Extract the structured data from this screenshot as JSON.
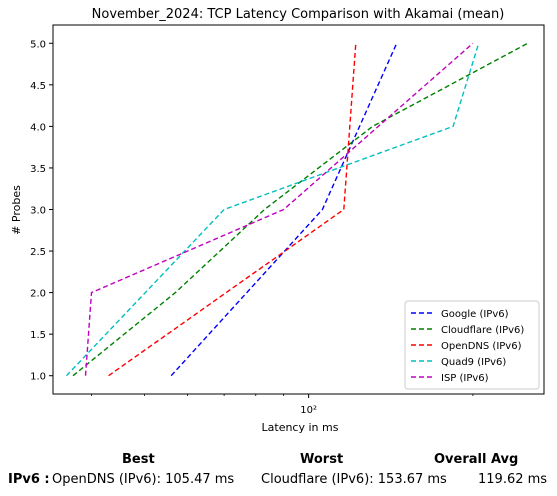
{
  "chart_data": {
    "type": "line",
    "title": "November_2024: TCP Latency Comparison with Akamai (mean)",
    "xlabel": "Latency in ms",
    "ylabel": "# Probes",
    "xscale": "log",
    "xlim": [
      34,
      270
    ],
    "ylim": [
      0.78,
      5.22
    ],
    "x_tick_labels": [
      "10²"
    ],
    "x_ticks": [
      100
    ],
    "y_ticks": [
      1.0,
      1.5,
      2.0,
      2.5,
      3.0,
      3.5,
      4.0,
      4.5,
      5.0
    ],
    "y_tick_labels": [
      "1.0",
      "1.5",
      "2.0",
      "2.5",
      "3.0",
      "3.5",
      "4.0",
      "4.5",
      "5.0"
    ],
    "grid": false,
    "legend_position": "lower-right",
    "series": [
      {
        "name": "Google (IPv6)",
        "color": "#0000ff",
        "x": [
          56,
          106,
          145
        ],
        "y": [
          1,
          3,
          5
        ]
      },
      {
        "name": "Cloudflare (IPv6)",
        "color": "#008000",
        "x": [
          37,
          57,
          83,
          131,
          252
        ],
        "y": [
          1,
          2,
          3,
          4,
          5
        ]
      },
      {
        "name": "OpenDNS (IPv6)",
        "color": "#ff0000",
        "x": [
          43,
          116,
          122
        ],
        "y": [
          1,
          3,
          5
        ]
      },
      {
        "name": "Quad9 (IPv6)",
        "color": "#00bfbf",
        "x": [
          36,
          70,
          184,
          205
        ],
        "y": [
          1,
          3,
          4,
          5
        ]
      },
      {
        "name": "ISP (IPv6)",
        "color": "#bf00bf",
        "x": [
          39,
          40,
          90,
          200
        ],
        "y": [
          1,
          2,
          3,
          5
        ]
      }
    ]
  },
  "summary": {
    "row_label": "IPv6 :",
    "best_header": "Best",
    "worst_header": "Worst",
    "avg_header": "Overall Avg",
    "best_value": "OpenDNS (IPv6): 105.47 ms",
    "worst_value": "Cloudflare (IPv6): 153.67 ms",
    "avg_value": "119.62 ms"
  }
}
